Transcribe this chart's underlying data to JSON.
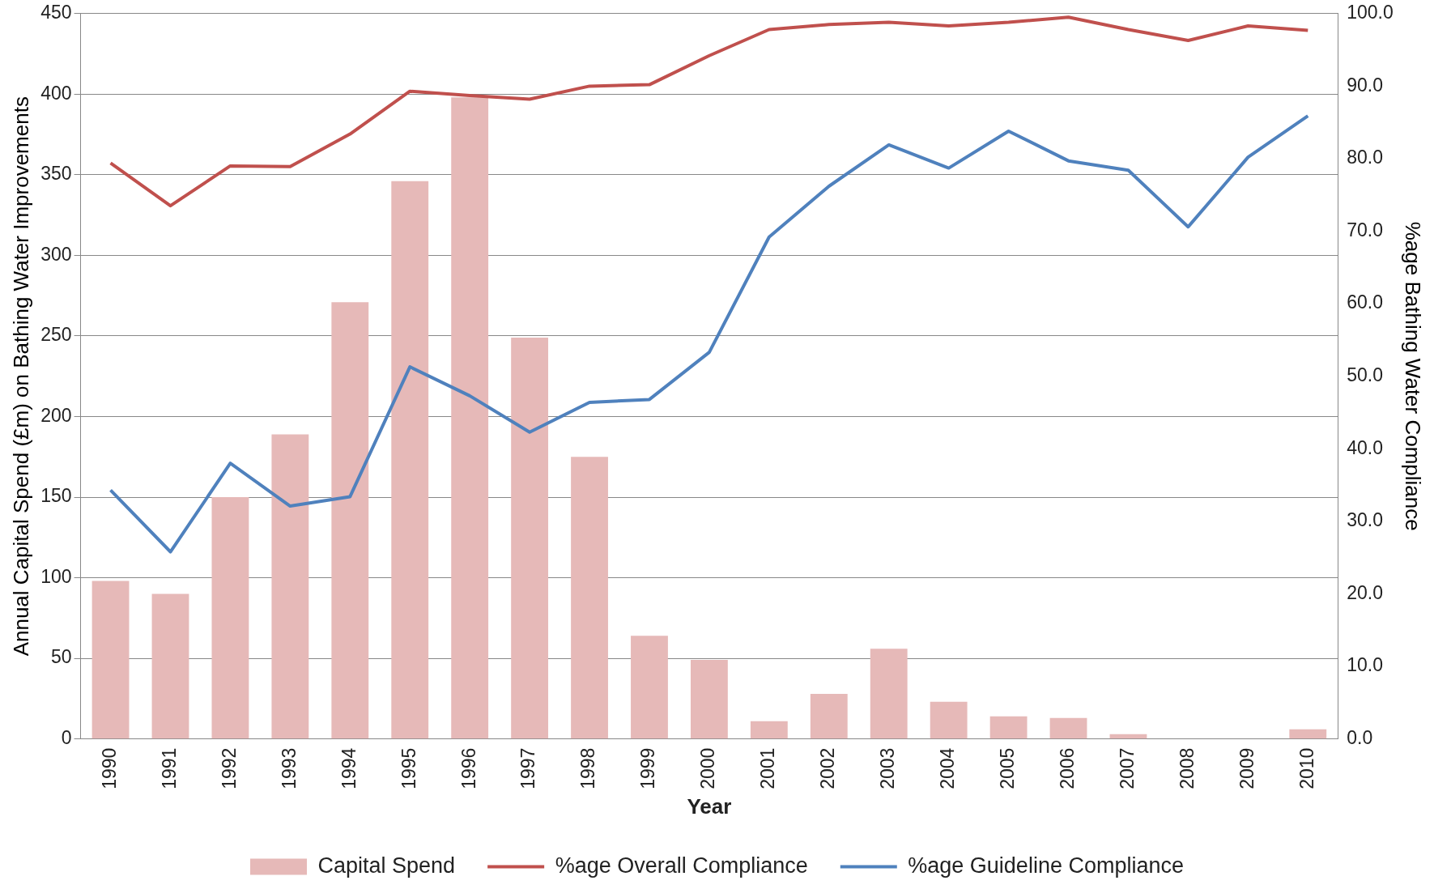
{
  "chart_data": {
    "type": "bar",
    "xlabel": "Year",
    "ylabel": "Annual Capital Spend (£m) on Bathing Water Improvements",
    "y2label": "%age Bathing Water Compliance",
    "categories": [
      "1990",
      "1991",
      "1992",
      "1993",
      "1994",
      "1995",
      "1996",
      "1997",
      "1998",
      "1999",
      "2000",
      "2001",
      "2002",
      "2003",
      "2004",
      "2005",
      "2006",
      "2007",
      "2008",
      "2009",
      "2010"
    ],
    "series": [
      {
        "name": "Capital Spend",
        "color": "#e6b9b8",
        "values": [
          98,
          90,
          150,
          189,
          271,
          346,
          398,
          249,
          175,
          64,
          49,
          11,
          28,
          56,
          23,
          14,
          13,
          3,
          null,
          null,
          6
        ]
      },
      {
        "name": "%age Overall Compliance",
        "type": "line",
        "axis": "y2",
        "color": "#c0504d",
        "values": [
          79.4,
          73.5,
          79.0,
          78.9,
          83.4,
          89.3,
          88.7,
          88.2,
          90.0,
          90.2,
          94.2,
          97.8,
          98.5,
          98.8,
          98.3,
          98.8,
          99.5,
          97.8,
          96.3,
          98.3,
          97.7
        ]
      },
      {
        "name": "%age Guideline Compliance",
        "type": "line",
        "axis": "y2",
        "color": "#4f81bd",
        "values": [
          34.3,
          25.8,
          38.0,
          32.1,
          33.4,
          51.3,
          47.3,
          42.3,
          46.4,
          46.8,
          53.3,
          69.2,
          76.2,
          81.9,
          78.7,
          83.8,
          79.7,
          78.4,
          70.6,
          80.2,
          85.9
        ]
      }
    ],
    "ylim": [
      0,
      450
    ],
    "yticks": [
      0,
      50,
      100,
      150,
      200,
      250,
      300,
      350,
      400,
      450
    ],
    "y2lim": [
      0,
      100
    ],
    "y2ticks": [
      {
        "value": 0,
        "label": "0.0"
      },
      {
        "value": 10,
        "label": "10.0"
      },
      {
        "value": 20,
        "label": "20.0"
      },
      {
        "value": 30,
        "label": "30.0"
      },
      {
        "value": 40,
        "label": "40.0"
      },
      {
        "value": 50,
        "label": "50.0"
      },
      {
        "value": 60,
        "label": "60.0"
      },
      {
        "value": 70,
        "label": "70.0"
      },
      {
        "value": 80,
        "label": "80.0"
      },
      {
        "value": 90,
        "label": "90.0"
      },
      {
        "value": 100,
        "label": "100.0"
      }
    ],
    "grid": "y",
    "legend": "bottom",
    "marker": "none"
  }
}
